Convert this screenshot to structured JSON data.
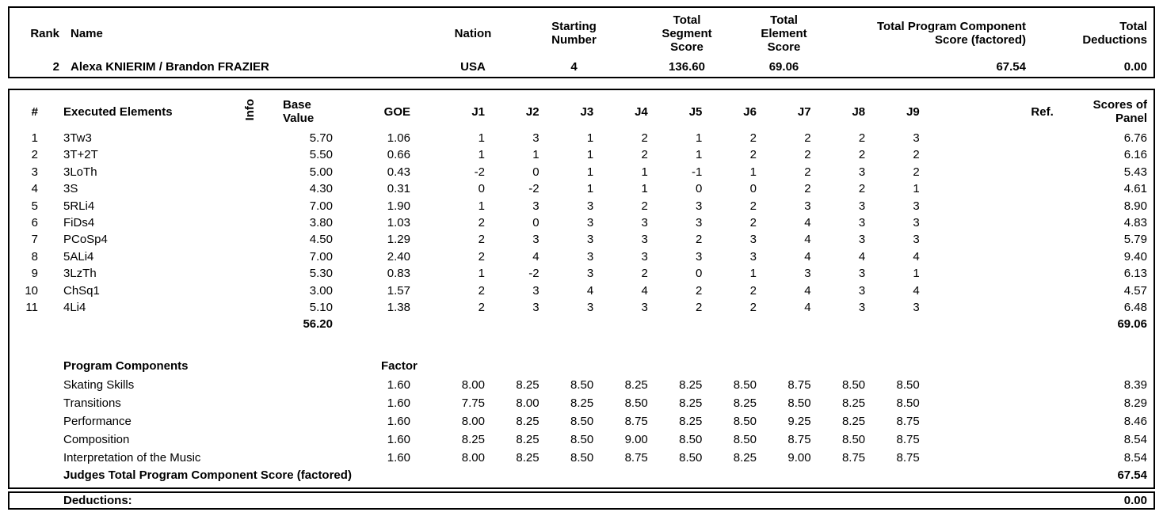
{
  "header": {
    "columns": {
      "rank": "Rank",
      "name": "Name",
      "nation": "Nation",
      "starting_number": "Starting\nNumber",
      "total_segment_score": "Total\nSegment\nScore",
      "total_element_score": "Total\nElement\nScore",
      "total_pcs": "Total Program Component\nScore (factored)",
      "total_deductions": "Total\nDeductions"
    },
    "row": {
      "rank": "2",
      "name": "Alexa KNIERIM / Brandon FRAZIER",
      "nation": "USA",
      "starting_number": "4",
      "total_segment_score": "136.60",
      "total_element_score": "69.06",
      "total_pcs": "67.54",
      "total_deductions": "0.00"
    }
  },
  "elements_table": {
    "columns": {
      "num": "#",
      "executed": "Executed Elements",
      "info": "Info",
      "base_value": "Base\nValue",
      "goe": "GOE",
      "judges": [
        "J1",
        "J2",
        "J3",
        "J4",
        "J5",
        "J6",
        "J7",
        "J8",
        "J9"
      ],
      "ref": "Ref.",
      "panel": "Scores of\nPanel"
    },
    "rows": [
      {
        "num": "1",
        "element": "3Tw3",
        "info": "",
        "base": "5.70",
        "goe": "1.06",
        "scores": [
          "1",
          "3",
          "1",
          "2",
          "1",
          "2",
          "2",
          "2",
          "3"
        ],
        "ref": "",
        "panel": "6.76"
      },
      {
        "num": "2",
        "element": "3T+2T",
        "info": "",
        "base": "5.50",
        "goe": "0.66",
        "scores": [
          "1",
          "1",
          "1",
          "2",
          "1",
          "2",
          "2",
          "2",
          "2"
        ],
        "ref": "",
        "panel": "6.16"
      },
      {
        "num": "3",
        "element": "3LoTh",
        "info": "",
        "base": "5.00",
        "goe": "0.43",
        "scores": [
          "-2",
          "0",
          "1",
          "1",
          "-1",
          "1",
          "2",
          "3",
          "2"
        ],
        "ref": "",
        "panel": "5.43"
      },
      {
        "num": "4",
        "element": "3S",
        "info": "",
        "base": "4.30",
        "goe": "0.31",
        "scores": [
          "0",
          "-2",
          "1",
          "1",
          "0",
          "0",
          "2",
          "2",
          "1"
        ],
        "ref": "",
        "panel": "4.61"
      },
      {
        "num": "5",
        "element": "5RLi4",
        "info": "",
        "base": "7.00",
        "goe": "1.90",
        "scores": [
          "1",
          "3",
          "3",
          "2",
          "3",
          "2",
          "3",
          "3",
          "3"
        ],
        "ref": "",
        "panel": "8.90"
      },
      {
        "num": "6",
        "element": "FiDs4",
        "info": "",
        "base": "3.80",
        "goe": "1.03",
        "scores": [
          "2",
          "0",
          "3",
          "3",
          "3",
          "2",
          "4",
          "3",
          "3"
        ],
        "ref": "",
        "panel": "4.83"
      },
      {
        "num": "7",
        "element": "PCoSp4",
        "info": "",
        "base": "4.50",
        "goe": "1.29",
        "scores": [
          "2",
          "3",
          "3",
          "3",
          "2",
          "3",
          "4",
          "3",
          "3"
        ],
        "ref": "",
        "panel": "5.79"
      },
      {
        "num": "8",
        "element": "5ALi4",
        "info": "",
        "base": "7.00",
        "goe": "2.40",
        "scores": [
          "2",
          "4",
          "3",
          "3",
          "3",
          "3",
          "4",
          "4",
          "4"
        ],
        "ref": "",
        "panel": "9.40"
      },
      {
        "num": "9",
        "element": "3LzTh",
        "info": "",
        "base": "5.30",
        "goe": "0.83",
        "scores": [
          "1",
          "-2",
          "3",
          "2",
          "0",
          "1",
          "3",
          "3",
          "1"
        ],
        "ref": "",
        "panel": "6.13"
      },
      {
        "num": "10",
        "element": "ChSq1",
        "info": "",
        "base": "3.00",
        "goe": "1.57",
        "scores": [
          "2",
          "3",
          "4",
          "4",
          "2",
          "2",
          "4",
          "3",
          "4"
        ],
        "ref": "",
        "panel": "4.57"
      },
      {
        "num": "11",
        "element": "4Li4",
        "info": "",
        "base": "5.10",
        "goe": "1.38",
        "scores": [
          "2",
          "3",
          "3",
          "3",
          "2",
          "2",
          "4",
          "3",
          "3"
        ],
        "ref": "",
        "panel": "6.48"
      }
    ],
    "total_base_value": "56.20",
    "total_panel": "69.06"
  },
  "components": {
    "title": "Program Components",
    "factor_label": "Factor",
    "rows": [
      {
        "name": "Skating Skills",
        "factor": "1.60",
        "scores": [
          "8.00",
          "8.25",
          "8.50",
          "8.25",
          "8.25",
          "8.50",
          "8.75",
          "8.50",
          "8.50"
        ],
        "panel": "8.39"
      },
      {
        "name": "Transitions",
        "factor": "1.60",
        "scores": [
          "7.75",
          "8.00",
          "8.25",
          "8.50",
          "8.25",
          "8.25",
          "8.50",
          "8.25",
          "8.50"
        ],
        "panel": "8.29"
      },
      {
        "name": "Performance",
        "factor": "1.60",
        "scores": [
          "8.00",
          "8.25",
          "8.50",
          "8.75",
          "8.25",
          "8.50",
          "9.25",
          "8.25",
          "8.75"
        ],
        "panel": "8.46"
      },
      {
        "name": "Composition",
        "factor": "1.60",
        "scores": [
          "8.25",
          "8.25",
          "8.50",
          "9.00",
          "8.50",
          "8.50",
          "8.75",
          "8.50",
          "8.75"
        ],
        "panel": "8.54"
      },
      {
        "name": "Interpretation of the Music",
        "factor": "1.60",
        "scores": [
          "8.00",
          "8.25",
          "8.50",
          "8.75",
          "8.50",
          "8.25",
          "9.00",
          "8.75",
          "8.75"
        ],
        "panel": "8.54"
      }
    ],
    "total_label": "Judges Total Program Component Score (factored)",
    "total_value": "67.54"
  },
  "deductions": {
    "label": "Deductions:",
    "value": "0.00"
  }
}
